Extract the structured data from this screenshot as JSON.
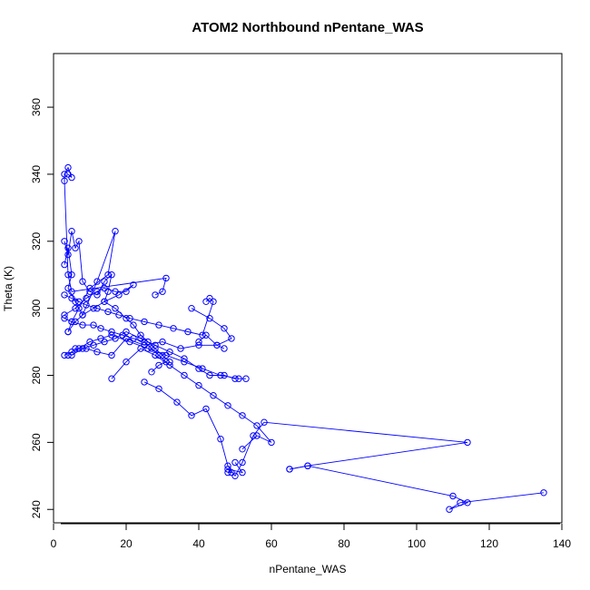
{
  "chart_data": {
    "type": "line",
    "title": "ATOM2 Northbound nPentane_WAS",
    "xlabel": "nPentane_WAS",
    "ylabel": "Theta (K)",
    "xlim": [
      0,
      140
    ],
    "ylim": [
      236,
      376
    ],
    "x_ticks": [
      0,
      20,
      40,
      60,
      80,
      100,
      120,
      140
    ],
    "y_ticks": [
      240,
      260,
      280,
      300,
      320,
      340,
      360
    ],
    "grid": false,
    "legend": "none",
    "color": "#0000ff",
    "marker": "open-circle",
    "series": [
      {
        "x": [
          4,
          5,
          4,
          3,
          3,
          4,
          5,
          31,
          30,
          28
        ],
        "y": [
          340,
          339,
          342,
          340,
          338,
          310,
          305,
          309,
          305,
          304
        ]
      },
      {
        "x": [
          3,
          4,
          5,
          6,
          7,
          8,
          10,
          12,
          14,
          16,
          15,
          14,
          17,
          20,
          22,
          24,
          26,
          28,
          30,
          32
        ],
        "y": [
          320,
          316,
          323,
          318,
          320,
          308,
          305,
          304,
          308,
          310,
          305,
          302,
          300,
          297,
          295,
          292,
          290,
          288,
          286,
          284
        ]
      },
      {
        "x": [
          3,
          4,
          5,
          4,
          6,
          8,
          12,
          17,
          15,
          10,
          7,
          5,
          4
        ],
        "y": [
          313,
          318,
          310,
          306,
          302,
          298,
          308,
          323,
          310,
          306,
          300,
          296,
          293
        ]
      },
      {
        "x": [
          3,
          5,
          7,
          9,
          12,
          15,
          18,
          21,
          25,
          29,
          33,
          37,
          41,
          44,
          43,
          42
        ],
        "y": [
          304,
          303,
          302,
          301,
          300,
          299,
          298,
          297,
          296,
          295,
          294,
          293,
          292,
          302,
          303,
          302
        ]
      },
      {
        "x": [
          3,
          6,
          9,
          12,
          14,
          17,
          20,
          22,
          18,
          14,
          11,
          8,
          6,
          4
        ],
        "y": [
          298,
          300,
          303,
          305,
          306,
          305,
          305,
          307,
          304,
          302,
          300,
          298,
          296,
          293
        ]
      },
      {
        "x": [
          3,
          5,
          8,
          11,
          13,
          16,
          19,
          22,
          25,
          27,
          29,
          31,
          29,
          27
        ],
        "y": [
          297,
          296,
          295,
          295,
          294,
          293,
          292,
          291,
          290,
          288,
          286,
          284,
          283,
          281
        ]
      },
      {
        "x": [
          4,
          6,
          9,
          12,
          16,
          20,
          25,
          30,
          35,
          40,
          45,
          47
        ],
        "y": [
          286,
          288,
          288,
          287,
          286,
          291,
          289,
          290,
          288,
          289,
          289,
          288
        ]
      },
      {
        "x": [
          3,
          5,
          7,
          10,
          13,
          16,
          21,
          26,
          31,
          36,
          41,
          46,
          51,
          53
        ],
        "y": [
          286,
          287,
          288,
          290,
          291,
          292,
          290,
          288,
          286,
          284,
          282,
          280,
          279,
          279
        ]
      },
      {
        "x": [
          5,
          8,
          11,
          14,
          17,
          20,
          24,
          28,
          32,
          36,
          40,
          43,
          47,
          50
        ],
        "y": [
          286,
          288,
          289,
          290,
          291,
          293,
          291,
          289,
          287,
          285,
          282,
          280,
          280,
          279
        ]
      },
      {
        "x": [
          16,
          20,
          24,
          28,
          32,
          36,
          40,
          44,
          48,
          52,
          56,
          60,
          56,
          52
        ],
        "y": [
          279,
          284,
          288,
          286,
          283,
          280,
          277,
          274,
          271,
          268,
          265,
          260,
          262,
          258
        ]
      },
      {
        "x": [
          25,
          29,
          34,
          38,
          42,
          46,
          48,
          50,
          52,
          55,
          58,
          114,
          70,
          65
        ],
        "y": [
          278,
          276,
          272,
          268,
          270,
          261,
          253,
          250,
          254,
          262,
          266,
          260,
          253,
          252
        ]
      },
      {
        "x": [
          48,
          49,
          48,
          52,
          50
        ],
        "y": [
          251,
          251,
          252,
          251,
          254
        ]
      },
      {
        "x": [
          38,
          43,
          47,
          49,
          45,
          42,
          40
        ],
        "y": [
          300,
          297,
          294,
          291,
          289,
          292,
          290
        ]
      },
      {
        "x": [
          65,
          70,
          110,
          114,
          109,
          112,
          135
        ],
        "y": [
          252,
          253,
          244,
          242,
          240,
          242,
          245
        ]
      }
    ]
  }
}
